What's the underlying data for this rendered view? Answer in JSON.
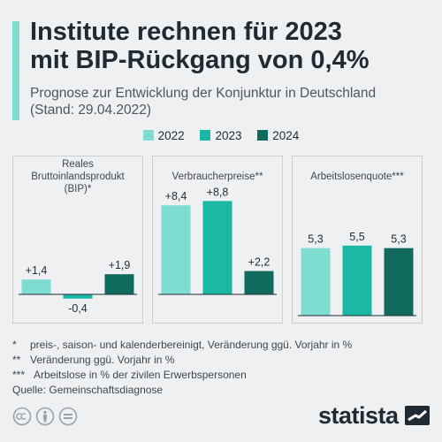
{
  "title_lines": [
    "Institute rechnen für 2023",
    "mit BIP-Rückgang von 0,4%"
  ],
  "subtitle_lines": [
    "Prognose zur Entwicklung der Konjunktur in Deutschland",
    "(Stand: 29.04.2022)"
  ],
  "colors": {
    "accent": "#7fdcd0",
    "c2022": "#7fdcd0",
    "c2023": "#1cb8a6",
    "c2024": "#106a5d"
  },
  "chart_data": {
    "type": "bar",
    "legend": [
      "2022",
      "2023",
      "2024"
    ],
    "legend_position": "top",
    "panels": [
      {
        "title_lines": [
          "Reales",
          "Bruttoinlandsprodukt",
          "(BIP)*"
        ],
        "categories": [
          "2022",
          "2023",
          "2024"
        ],
        "values": [
          1.4,
          -0.4,
          1.9
        ],
        "labels": [
          "+1,4",
          "-0,4",
          "+1,9"
        ],
        "ylim": [
          -2,
          10
        ]
      },
      {
        "title_lines": [
          "Verbraucherpreise**"
        ],
        "categories": [
          "2022",
          "2023",
          "2024"
        ],
        "values": [
          8.4,
          8.8,
          2.2
        ],
        "labels": [
          "+8,4",
          "+8,8",
          "+2,2"
        ],
        "ylim": [
          -2,
          10
        ]
      },
      {
        "title_lines": [
          "Arbeitslosenquote***"
        ],
        "categories": [
          "2022",
          "2023",
          "2024"
        ],
        "values": [
          5.3,
          5.5,
          5.3
        ],
        "labels": [
          "5,3",
          "5,5",
          "5,3"
        ],
        "ylim": [
          0,
          10
        ]
      }
    ]
  },
  "footnotes": [
    {
      "mark": "*",
      "text": "preis-, saison- und kalenderbereinigt, Veränderung ggü. Vorjahr in %"
    },
    {
      "mark": "**",
      "text": "Veränderung ggü. Vorjahr in %"
    },
    {
      "mark": "***",
      "text": "Arbeitslose in % der zivilen Erwerbspersonen"
    }
  ],
  "source": "Quelle: Gemeinschaftsdiagnose",
  "icons": [
    "cc-icon",
    "person-icon",
    "equals-icon"
  ],
  "logo_text": "statista"
}
